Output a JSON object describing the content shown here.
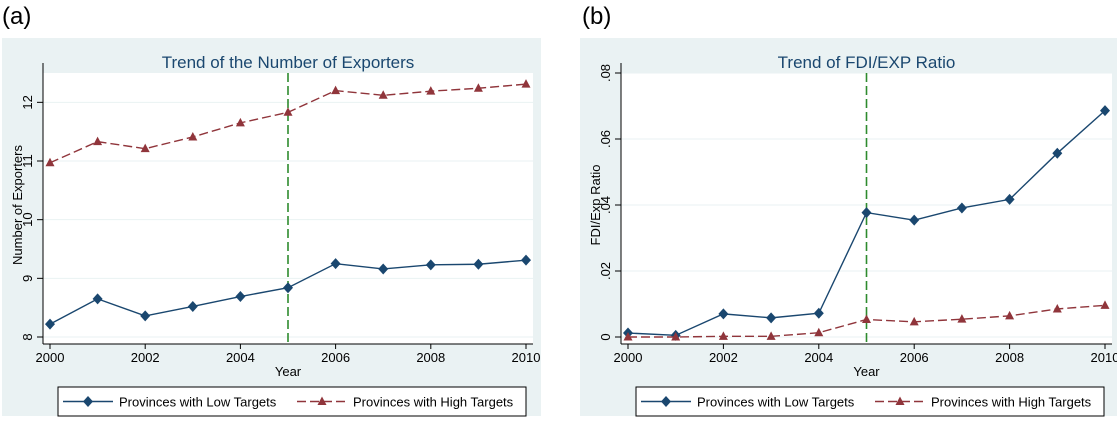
{
  "chart_data": [
    {
      "panel_label": "(a)",
      "type": "line",
      "title": "Trend of the Number of Exporters",
      "xlabel": "Year",
      "ylabel": "Number of Exporters",
      "xlim": [
        2000,
        2010
      ],
      "ylim": [
        8,
        12.5
      ],
      "x_ticks": [
        2000,
        2002,
        2004,
        2006,
        2008,
        2010
      ],
      "x_tick_labels": [
        "2000",
        "2002",
        "2004",
        "2006",
        "2008",
        "2010"
      ],
      "y_ticks": [
        8,
        9,
        10,
        11,
        12
      ],
      "y_tick_labels": [
        "8",
        "9",
        "10",
        "11",
        "12"
      ],
      "grid": "horizontal",
      "vline": {
        "x": 2005,
        "color": "#2e8b2e",
        "style": "dashed"
      },
      "x": [
        2000,
        2001,
        2002,
        2003,
        2004,
        2005,
        2006,
        2007,
        2008,
        2009,
        2010
      ],
      "series": [
        {
          "name": "Provinces with Low Targets",
          "marker": "diamond",
          "color": "#1a476f",
          "dash": "solid",
          "values": [
            8.22,
            8.65,
            8.36,
            8.52,
            8.69,
            8.84,
            9.25,
            9.16,
            9.23,
            9.24,
            9.31
          ]
        },
        {
          "name": "Provinces with High Targets",
          "marker": "triangle",
          "color": "#90353b",
          "dash": "longdash",
          "values": [
            10.97,
            11.33,
            11.21,
            11.41,
            11.65,
            11.83,
            12.2,
            12.12,
            12.19,
            12.24,
            12.31
          ]
        }
      ],
      "legend_position": "bottom"
    },
    {
      "panel_label": "(b)",
      "type": "line",
      "title": "Trend of FDI/EXP Ratio",
      "xlabel": "Year",
      "ylabel": "FDI/Exp Ratio",
      "xlim": [
        2000,
        2010
      ],
      "ylim": [
        0,
        0.08
      ],
      "x_ticks": [
        2000,
        2002,
        2004,
        2006,
        2008,
        2010
      ],
      "x_tick_labels": [
        "2000",
        "2002",
        "2004",
        "2006",
        "2008",
        "2010"
      ],
      "y_ticks": [
        0,
        0.02,
        0.04,
        0.06,
        0.08
      ],
      "y_tick_labels": [
        "0",
        ".02",
        ".04",
        ".06",
        ".08"
      ],
      "grid": "horizontal",
      "vline": {
        "x": 2005,
        "color": "#2e8b2e",
        "style": "dashed"
      },
      "x": [
        2000,
        2001,
        2002,
        2003,
        2004,
        2005,
        2006,
        2007,
        2008,
        2009,
        2010
      ],
      "series": [
        {
          "name": "Provinces with Low Targets",
          "marker": "diamond",
          "color": "#1a476f",
          "dash": "solid",
          "values": [
            0.0012,
            0.0005,
            0.007,
            0.0058,
            0.0072,
            0.0377,
            0.0354,
            0.0391,
            0.0417,
            0.0557,
            0.0686
          ]
        },
        {
          "name": "Provinces with High Targets",
          "marker": "triangle",
          "color": "#90353b",
          "dash": "longdash",
          "values": [
            0.0,
            0.0,
            0.0002,
            0.0002,
            0.0013,
            0.0053,
            0.0046,
            0.0054,
            0.0064,
            0.0085,
            0.0096
          ]
        }
      ],
      "legend_position": "bottom"
    }
  ],
  "colors": {
    "outer_background": "#eaf2f3",
    "plot_background": "#ffffff",
    "grid": "#eaf2f3",
    "low_series": "#1a476f",
    "high_series": "#90353b",
    "policy_line": "#2e8b2e",
    "text": "#1a476f"
  }
}
